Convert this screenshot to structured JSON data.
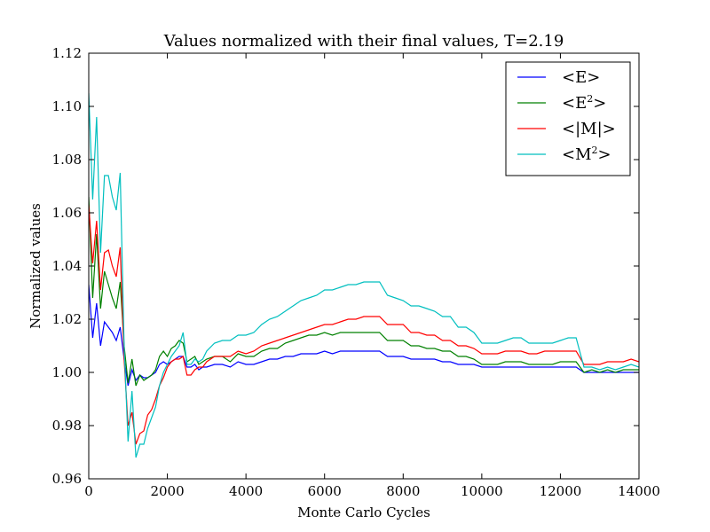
{
  "chart_data": {
    "type": "line",
    "title": "Values normalized with their final values, T=2.19",
    "xlabel": "Monte Carlo Cycles",
    "ylabel": "Normalized values",
    "xlim": [
      0,
      14000
    ],
    "ylim": [
      0.96,
      1.12
    ],
    "xticks": [
      0,
      2000,
      4000,
      6000,
      8000,
      10000,
      12000,
      14000
    ],
    "yticks": [
      0.96,
      0.98,
      1.0,
      1.02,
      1.04,
      1.06,
      1.08,
      1.1,
      1.12
    ],
    "xtick_labels": [
      "0",
      "2000",
      "4000",
      "6000",
      "8000",
      "10000",
      "12000",
      "14000"
    ],
    "ytick_labels": [
      "0.96",
      "0.98",
      "1.00",
      "1.02",
      "1.04",
      "1.06",
      "1.08",
      "1.10",
      "1.12"
    ],
    "grid": false,
    "legend_position": "top-right",
    "legend": [
      {
        "base": "<E>",
        "sup": "",
        "tail": ""
      },
      {
        "base": "<E",
        "sup": "2",
        "tail": ">"
      },
      {
        "base": "<|M|>",
        "sup": "",
        "tail": ""
      },
      {
        "base": "<M",
        "sup": "2",
        "tail": ">"
      }
    ],
    "series": [
      {
        "color": "#0000ff",
        "x": [
          0,
          100,
          200,
          300,
          400,
          500,
          600,
          700,
          800,
          900,
          1000,
          1100,
          1200,
          1300,
          1400,
          1500,
          1600,
          1700,
          1800,
          1900,
          2000,
          2100,
          2200,
          2300,
          2400,
          2500,
          2600,
          2700,
          2800,
          2900,
          3000,
          3200,
          3400,
          3600,
          3800,
          4000,
          4200,
          4400,
          4600,
          4800,
          5000,
          5200,
          5400,
          5600,
          5800,
          6000,
          6200,
          6400,
          6600,
          6800,
          7000,
          7200,
          7400,
          7600,
          7800,
          8000,
          8200,
          8400,
          8600,
          8800,
          9000,
          9200,
          9400,
          9600,
          9800,
          10000,
          10200,
          10400,
          10600,
          10800,
          11000,
          11200,
          11400,
          11600,
          11800,
          12000,
          12200,
          12400,
          12600,
          12800,
          13000,
          13200,
          13400,
          13600,
          13800,
          14000
        ],
        "y": [
          1.033,
          1.013,
          1.026,
          1.01,
          1.019,
          1.017,
          1.015,
          1.012,
          1.017,
          1.005,
          0.995,
          1.001,
          0.997,
          0.999,
          0.998,
          0.998,
          0.999,
          1.0,
          1.003,
          1.004,
          1.003,
          1.004,
          1.005,
          1.006,
          1.006,
          1.002,
          1.002,
          1.003,
          1.001,
          1.002,
          1.002,
          1.003,
          1.003,
          1.002,
          1.004,
          1.003,
          1.003,
          1.004,
          1.005,
          1.005,
          1.006,
          1.006,
          1.007,
          1.007,
          1.007,
          1.008,
          1.007,
          1.008,
          1.008,
          1.008,
          1.008,
          1.008,
          1.008,
          1.006,
          1.006,
          1.006,
          1.005,
          1.005,
          1.005,
          1.005,
          1.004,
          1.004,
          1.003,
          1.003,
          1.003,
          1.002,
          1.002,
          1.002,
          1.002,
          1.002,
          1.002,
          1.002,
          1.002,
          1.002,
          1.002,
          1.002,
          1.002,
          1.002,
          1.0,
          1.0,
          1.0,
          1.0,
          1.0,
          1.0,
          1.0,
          1.0
        ]
      },
      {
        "color": "#008000",
        "x": [
          0,
          100,
          200,
          300,
          400,
          500,
          600,
          700,
          800,
          900,
          1000,
          1100,
          1200,
          1300,
          1400,
          1500,
          1600,
          1700,
          1800,
          1900,
          2000,
          2100,
          2200,
          2300,
          2400,
          2500,
          2600,
          2700,
          2800,
          2900,
          3000,
          3200,
          3400,
          3600,
          3800,
          4000,
          4200,
          4400,
          4600,
          4800,
          5000,
          5200,
          5400,
          5600,
          5800,
          6000,
          6200,
          6400,
          6600,
          6800,
          7000,
          7200,
          7400,
          7600,
          7800,
          8000,
          8200,
          8400,
          8600,
          8800,
          9000,
          9200,
          9400,
          9600,
          9800,
          10000,
          10200,
          10400,
          10600,
          10800,
          11000,
          11200,
          11400,
          11600,
          11800,
          12000,
          12200,
          12400,
          12600,
          12800,
          13000,
          13200,
          13400,
          13600,
          13800,
          14000
        ],
        "y": [
          1.066,
          1.028,
          1.052,
          1.024,
          1.038,
          1.033,
          1.028,
          1.024,
          1.034,
          1.01,
          0.996,
          1.005,
          0.995,
          0.999,
          0.997,
          0.998,
          0.999,
          1.001,
          1.006,
          1.008,
          1.006,
          1.009,
          1.01,
          1.012,
          1.011,
          1.004,
          1.005,
          1.006,
          1.003,
          1.004,
          1.005,
          1.006,
          1.006,
          1.004,
          1.007,
          1.006,
          1.006,
          1.008,
          1.009,
          1.009,
          1.011,
          1.012,
          1.013,
          1.014,
          1.014,
          1.015,
          1.014,
          1.015,
          1.015,
          1.015,
          1.015,
          1.015,
          1.015,
          1.012,
          1.012,
          1.012,
          1.01,
          1.01,
          1.009,
          1.009,
          1.008,
          1.008,
          1.006,
          1.006,
          1.005,
          1.003,
          1.003,
          1.003,
          1.004,
          1.004,
          1.004,
          1.003,
          1.003,
          1.003,
          1.003,
          1.004,
          1.004,
          1.004,
          1.0,
          1.001,
          1.0,
          1.001,
          1.0,
          1.001,
          1.001,
          1.001
        ]
      },
      {
        "color": "#ff0000",
        "x": [
          0,
          100,
          200,
          300,
          400,
          500,
          600,
          700,
          800,
          900,
          1000,
          1100,
          1200,
          1300,
          1400,
          1500,
          1600,
          1700,
          1800,
          1900,
          2000,
          2100,
          2200,
          2300,
          2400,
          2500,
          2600,
          2700,
          2800,
          2900,
          3000,
          3200,
          3400,
          3600,
          3800,
          4000,
          4200,
          4400,
          4600,
          4800,
          5000,
          5200,
          5400,
          5600,
          5800,
          6000,
          6200,
          6400,
          6600,
          6800,
          7000,
          7200,
          7400,
          7600,
          7800,
          8000,
          8200,
          8400,
          8600,
          8800,
          9000,
          9200,
          9400,
          9600,
          9800,
          10000,
          10200,
          10400,
          10600,
          10800,
          11000,
          11200,
          11400,
          11600,
          11800,
          12000,
          12200,
          12400,
          12600,
          12800,
          13000,
          13200,
          13400,
          13600,
          13800,
          14000
        ],
        "y": [
          1.063,
          1.041,
          1.057,
          1.031,
          1.045,
          1.046,
          1.04,
          1.036,
          1.047,
          1.005,
          0.98,
          0.985,
          0.973,
          0.977,
          0.978,
          0.984,
          0.986,
          0.99,
          0.995,
          0.998,
          1.002,
          1.004,
          1.005,
          1.005,
          1.006,
          0.999,
          0.999,
          1.001,
          1.002,
          1.002,
          1.004,
          1.006,
          1.006,
          1.006,
          1.008,
          1.007,
          1.008,
          1.01,
          1.011,
          1.012,
          1.013,
          1.014,
          1.015,
          1.016,
          1.017,
          1.018,
          1.018,
          1.019,
          1.02,
          1.02,
          1.021,
          1.021,
          1.021,
          1.018,
          1.018,
          1.018,
          1.015,
          1.015,
          1.014,
          1.014,
          1.012,
          1.012,
          1.01,
          1.01,
          1.009,
          1.007,
          1.007,
          1.007,
          1.008,
          1.008,
          1.008,
          1.007,
          1.007,
          1.008,
          1.008,
          1.008,
          1.008,
          1.008,
          1.003,
          1.003,
          1.003,
          1.004,
          1.004,
          1.004,
          1.005,
          1.004
        ]
      },
      {
        "color": "#00bfbf",
        "x": [
          0,
          100,
          200,
          300,
          400,
          500,
          600,
          700,
          800,
          900,
          1000,
          1100,
          1200,
          1300,
          1400,
          1500,
          1600,
          1700,
          1800,
          1900,
          2000,
          2100,
          2200,
          2300,
          2400,
          2500,
          2600,
          2700,
          2800,
          2900,
          3000,
          3200,
          3400,
          3600,
          3800,
          4000,
          4200,
          4400,
          4600,
          4800,
          5000,
          5200,
          5400,
          5600,
          5800,
          6000,
          6200,
          6400,
          6600,
          6800,
          7000,
          7200,
          7400,
          7600,
          7800,
          8000,
          8200,
          8400,
          8600,
          8800,
          9000,
          9200,
          9400,
          9600,
          9800,
          10000,
          10200,
          10400,
          10600,
          10800,
          11000,
          11200,
          11400,
          11600,
          11800,
          12000,
          12200,
          12400,
          12600,
          12800,
          13000,
          13200,
          13400,
          13600,
          13800,
          14000
        ],
        "y": [
          1.105,
          1.065,
          1.096,
          1.045,
          1.074,
          1.074,
          1.066,
          1.061,
          1.075,
          1.01,
          0.974,
          0.993,
          0.968,
          0.973,
          0.973,
          0.979,
          0.983,
          0.987,
          0.995,
          1.0,
          1.003,
          1.006,
          1.008,
          1.01,
          1.015,
          1.003,
          1.003,
          1.005,
          1.004,
          1.005,
          1.008,
          1.011,
          1.012,
          1.012,
          1.014,
          1.014,
          1.015,
          1.018,
          1.02,
          1.021,
          1.023,
          1.025,
          1.027,
          1.028,
          1.029,
          1.031,
          1.031,
          1.032,
          1.033,
          1.033,
          1.034,
          1.034,
          1.034,
          1.029,
          1.028,
          1.027,
          1.025,
          1.025,
          1.024,
          1.023,
          1.021,
          1.021,
          1.017,
          1.017,
          1.015,
          1.011,
          1.011,
          1.011,
          1.012,
          1.013,
          1.013,
          1.011,
          1.011,
          1.011,
          1.011,
          1.012,
          1.013,
          1.013,
          1.002,
          1.002,
          1.001,
          1.002,
          1.001,
          1.002,
          1.003,
          1.002
        ]
      }
    ]
  }
}
